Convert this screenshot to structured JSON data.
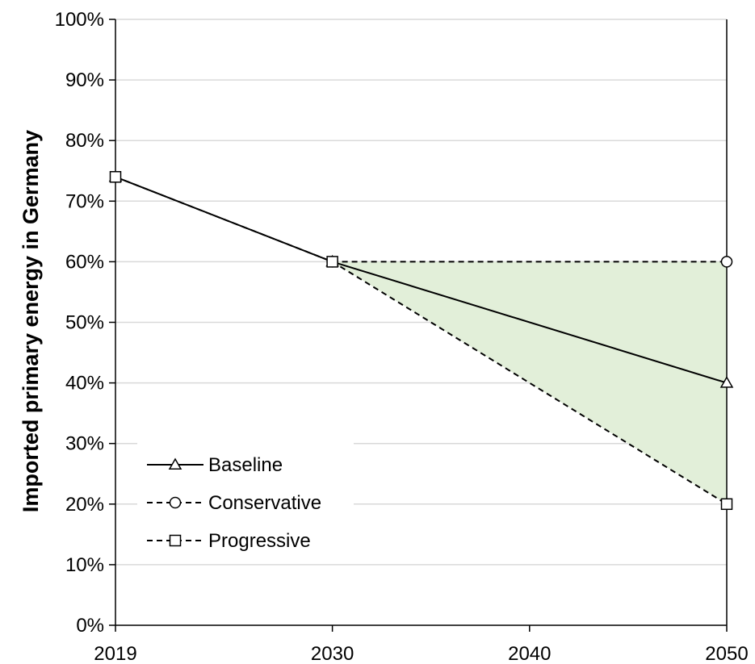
{
  "chart_data": {
    "type": "line",
    "title": "",
    "xlabel": "",
    "ylabel": "Imported primary energy in Germany",
    "x": [
      2019,
      2030,
      2040,
      2050
    ],
    "x_ticks": [
      "2019",
      "2030",
      "2040",
      "2050"
    ],
    "xlim": [
      2019,
      2050
    ],
    "ylim": [
      0,
      1
    ],
    "y_ticks": [
      "0%",
      "10%",
      "20%",
      "30%",
      "40%",
      "50%",
      "60%",
      "70%",
      "80%",
      "90%",
      "100%"
    ],
    "grid": "horizontal",
    "legend_position": "lower-left",
    "shaded_band": {
      "between": [
        "Conservative",
        "Progressive"
      ],
      "from_x": 2030,
      "to_x": 2050,
      "color": "#e2efd9"
    },
    "series": [
      {
        "name": "Baseline",
        "line_style": "solid",
        "marker": "triangle",
        "points": [
          {
            "x": 2019,
            "y": 0.74
          },
          {
            "x": 2030,
            "y": 0.6
          },
          {
            "x": 2050,
            "y": 0.4
          }
        ]
      },
      {
        "name": "Conservative",
        "line_style": "dashed",
        "marker": "circle",
        "points": [
          {
            "x": 2030,
            "y": 0.6
          },
          {
            "x": 2050,
            "y": 0.6
          }
        ]
      },
      {
        "name": "Progressive",
        "line_style": "dashed",
        "marker": "square",
        "points": [
          {
            "x": 2019,
            "y": 0.74
          },
          {
            "x": 2030,
            "y": 0.6
          },
          {
            "x": 2050,
            "y": 0.2
          }
        ]
      }
    ]
  }
}
